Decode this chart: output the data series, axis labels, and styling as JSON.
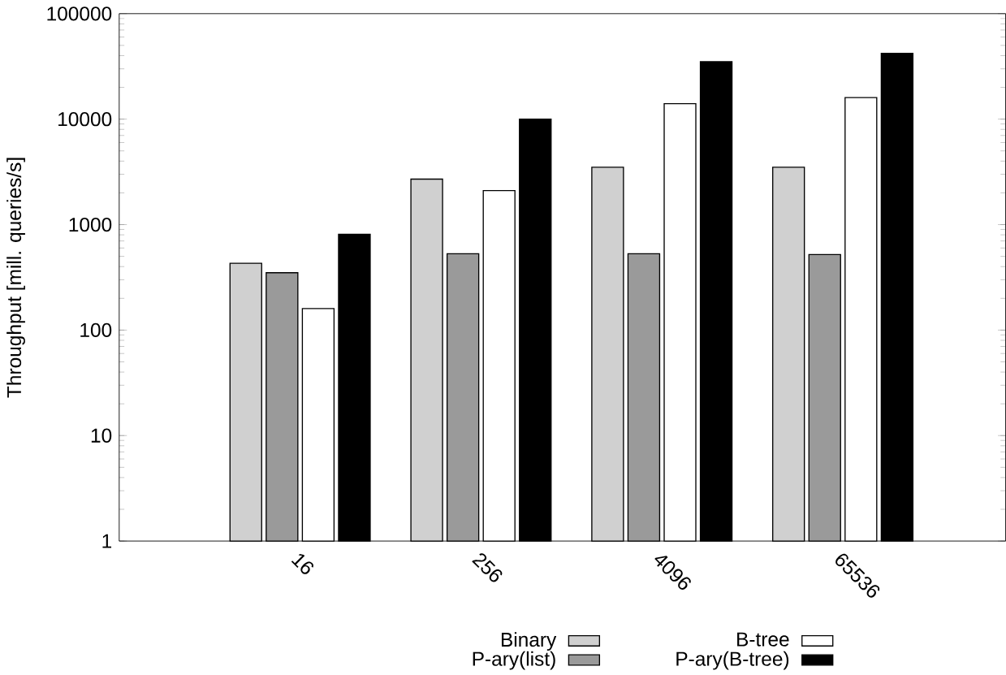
{
  "chart_data": {
    "type": "bar",
    "ylabel": "Throughput [mill. queries/s]",
    "categories": [
      "16",
      "256",
      "4096",
      "65536"
    ],
    "series": [
      {
        "name": "Binary",
        "color": "#d0d0d0",
        "values": [
          430,
          2700,
          3500,
          3500
        ]
      },
      {
        "name": "P-ary(list)",
        "color": "#9a9a9a",
        "values": [
          350,
          530,
          530,
          520
        ]
      },
      {
        "name": "B-tree",
        "color": "#ffffff",
        "values": [
          160,
          2100,
          14000,
          16000
        ]
      },
      {
        "name": "P-ary(B-tree)",
        "color": "#000000",
        "values": [
          810,
          10000,
          35000,
          42000
        ]
      }
    ],
    "log": "y",
    "ylim": [
      1,
      100000
    ],
    "yticks": [
      1,
      10,
      100,
      1000,
      10000,
      100000
    ],
    "legend": "bottom",
    "grid": false
  }
}
